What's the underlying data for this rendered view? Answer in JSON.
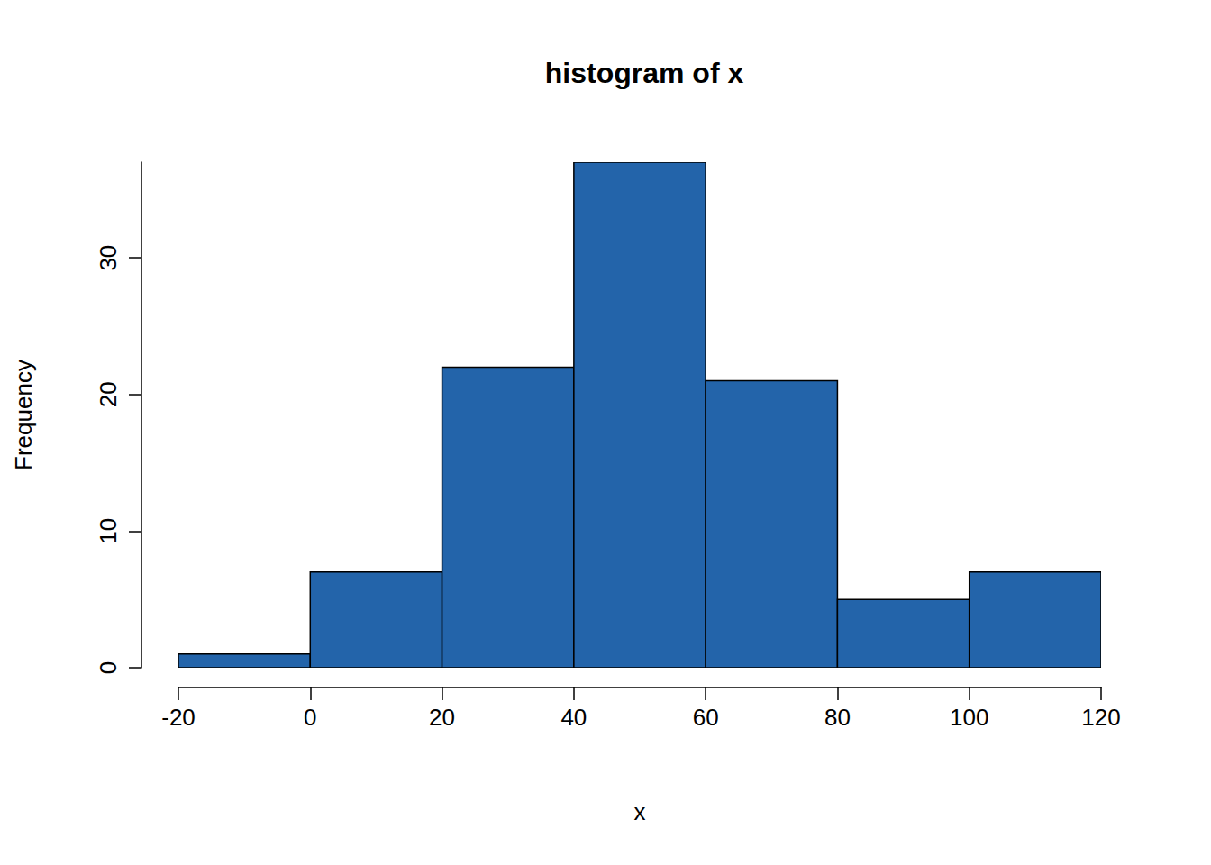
{
  "chart_data": {
    "type": "histogram",
    "title": "histogram of x",
    "x_label": "x",
    "y_label": "Frequency",
    "bins": [
      -20,
      0,
      20,
      40,
      60,
      80,
      100,
      120
    ],
    "values": [
      1,
      7,
      22,
      37,
      21,
      5,
      7
    ],
    "color": "#2364aa",
    "xlim": [
      -20,
      120
    ],
    "ylim": [
      0,
      37
    ],
    "xticks": [
      -20,
      0,
      20,
      40,
      60,
      80,
      100,
      120
    ],
    "yticks": [
      0,
      10,
      20,
      30
    ],
    "grid": false
  }
}
